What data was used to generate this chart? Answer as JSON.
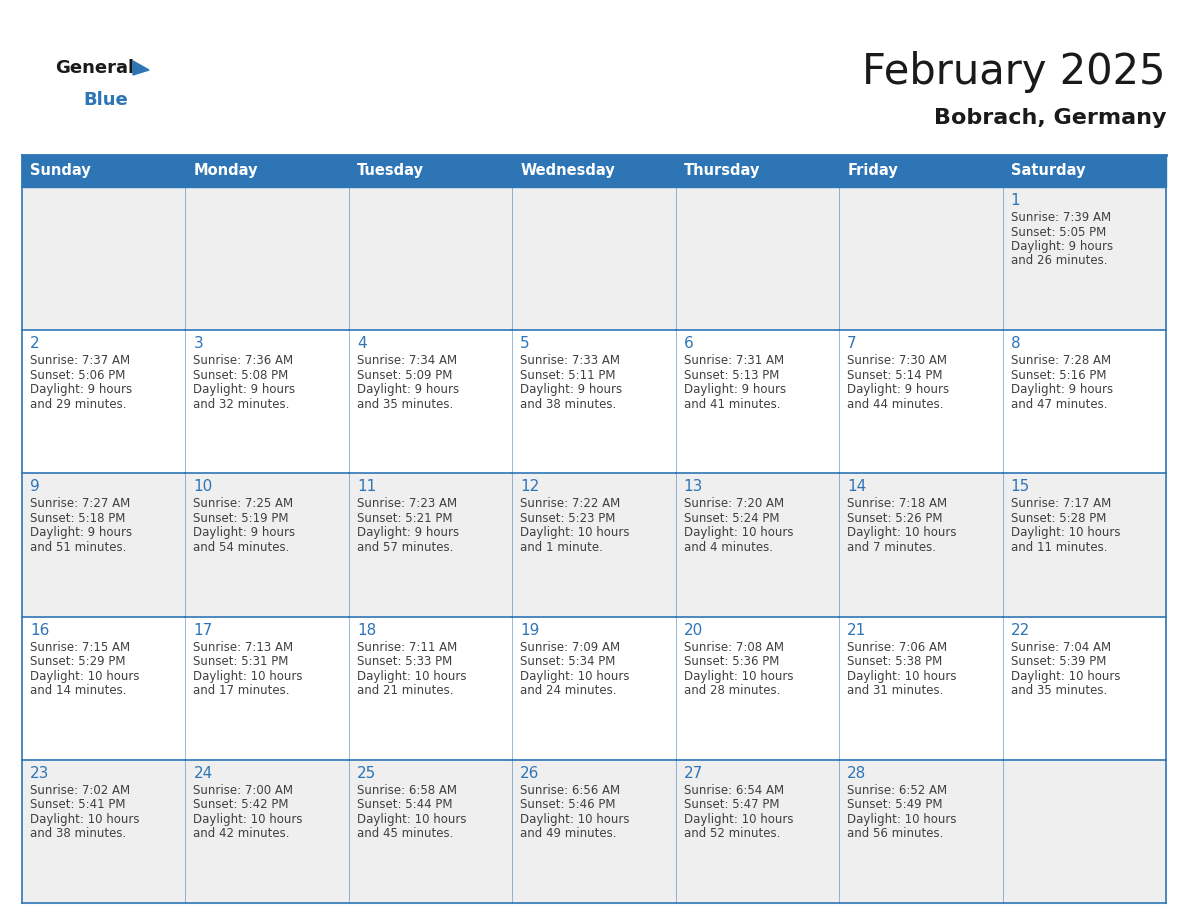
{
  "title": "February 2025",
  "subtitle": "Bobrach, Germany",
  "header_bg": "#2E75B6",
  "header_text_color": "#FFFFFF",
  "odd_row_bg": "#EFEFEF",
  "even_row_bg": "#FFFFFF",
  "border_color": "#2E75B6",
  "day_number_color": "#2E75B6",
  "text_color": "#404040",
  "logo_black": "#1a1a1a",
  "logo_blue": "#2E75B6",
  "days_of_week": [
    "Sunday",
    "Monday",
    "Tuesday",
    "Wednesday",
    "Thursday",
    "Friday",
    "Saturday"
  ],
  "weeks": [
    [
      {
        "day": null,
        "info": null
      },
      {
        "day": null,
        "info": null
      },
      {
        "day": null,
        "info": null
      },
      {
        "day": null,
        "info": null
      },
      {
        "day": null,
        "info": null
      },
      {
        "day": null,
        "info": null
      },
      {
        "day": 1,
        "info": "Sunrise: 7:39 AM\nSunset: 5:05 PM\nDaylight: 9 hours\nand 26 minutes."
      }
    ],
    [
      {
        "day": 2,
        "info": "Sunrise: 7:37 AM\nSunset: 5:06 PM\nDaylight: 9 hours\nand 29 minutes."
      },
      {
        "day": 3,
        "info": "Sunrise: 7:36 AM\nSunset: 5:08 PM\nDaylight: 9 hours\nand 32 minutes."
      },
      {
        "day": 4,
        "info": "Sunrise: 7:34 AM\nSunset: 5:09 PM\nDaylight: 9 hours\nand 35 minutes."
      },
      {
        "day": 5,
        "info": "Sunrise: 7:33 AM\nSunset: 5:11 PM\nDaylight: 9 hours\nand 38 minutes."
      },
      {
        "day": 6,
        "info": "Sunrise: 7:31 AM\nSunset: 5:13 PM\nDaylight: 9 hours\nand 41 minutes."
      },
      {
        "day": 7,
        "info": "Sunrise: 7:30 AM\nSunset: 5:14 PM\nDaylight: 9 hours\nand 44 minutes."
      },
      {
        "day": 8,
        "info": "Sunrise: 7:28 AM\nSunset: 5:16 PM\nDaylight: 9 hours\nand 47 minutes."
      }
    ],
    [
      {
        "day": 9,
        "info": "Sunrise: 7:27 AM\nSunset: 5:18 PM\nDaylight: 9 hours\nand 51 minutes."
      },
      {
        "day": 10,
        "info": "Sunrise: 7:25 AM\nSunset: 5:19 PM\nDaylight: 9 hours\nand 54 minutes."
      },
      {
        "day": 11,
        "info": "Sunrise: 7:23 AM\nSunset: 5:21 PM\nDaylight: 9 hours\nand 57 minutes."
      },
      {
        "day": 12,
        "info": "Sunrise: 7:22 AM\nSunset: 5:23 PM\nDaylight: 10 hours\nand 1 minute."
      },
      {
        "day": 13,
        "info": "Sunrise: 7:20 AM\nSunset: 5:24 PM\nDaylight: 10 hours\nand 4 minutes."
      },
      {
        "day": 14,
        "info": "Sunrise: 7:18 AM\nSunset: 5:26 PM\nDaylight: 10 hours\nand 7 minutes."
      },
      {
        "day": 15,
        "info": "Sunrise: 7:17 AM\nSunset: 5:28 PM\nDaylight: 10 hours\nand 11 minutes."
      }
    ],
    [
      {
        "day": 16,
        "info": "Sunrise: 7:15 AM\nSunset: 5:29 PM\nDaylight: 10 hours\nand 14 minutes."
      },
      {
        "day": 17,
        "info": "Sunrise: 7:13 AM\nSunset: 5:31 PM\nDaylight: 10 hours\nand 17 minutes."
      },
      {
        "day": 18,
        "info": "Sunrise: 7:11 AM\nSunset: 5:33 PM\nDaylight: 10 hours\nand 21 minutes."
      },
      {
        "day": 19,
        "info": "Sunrise: 7:09 AM\nSunset: 5:34 PM\nDaylight: 10 hours\nand 24 minutes."
      },
      {
        "day": 20,
        "info": "Sunrise: 7:08 AM\nSunset: 5:36 PM\nDaylight: 10 hours\nand 28 minutes."
      },
      {
        "day": 21,
        "info": "Sunrise: 7:06 AM\nSunset: 5:38 PM\nDaylight: 10 hours\nand 31 minutes."
      },
      {
        "day": 22,
        "info": "Sunrise: 7:04 AM\nSunset: 5:39 PM\nDaylight: 10 hours\nand 35 minutes."
      }
    ],
    [
      {
        "day": 23,
        "info": "Sunrise: 7:02 AM\nSunset: 5:41 PM\nDaylight: 10 hours\nand 38 minutes."
      },
      {
        "day": 24,
        "info": "Sunrise: 7:00 AM\nSunset: 5:42 PM\nDaylight: 10 hours\nand 42 minutes."
      },
      {
        "day": 25,
        "info": "Sunrise: 6:58 AM\nSunset: 5:44 PM\nDaylight: 10 hours\nand 45 minutes."
      },
      {
        "day": 26,
        "info": "Sunrise: 6:56 AM\nSunset: 5:46 PM\nDaylight: 10 hours\nand 49 minutes."
      },
      {
        "day": 27,
        "info": "Sunrise: 6:54 AM\nSunset: 5:47 PM\nDaylight: 10 hours\nand 52 minutes."
      },
      {
        "day": 28,
        "info": "Sunrise: 6:52 AM\nSunset: 5:49 PM\nDaylight: 10 hours\nand 56 minutes."
      },
      {
        "day": null,
        "info": null
      }
    ]
  ],
  "fig_width": 11.88,
  "fig_height": 9.18,
  "title_fontsize": 30,
  "subtitle_fontsize": 16,
  "header_fontsize": 10.5,
  "day_num_fontsize": 11,
  "info_fontsize": 8.5
}
